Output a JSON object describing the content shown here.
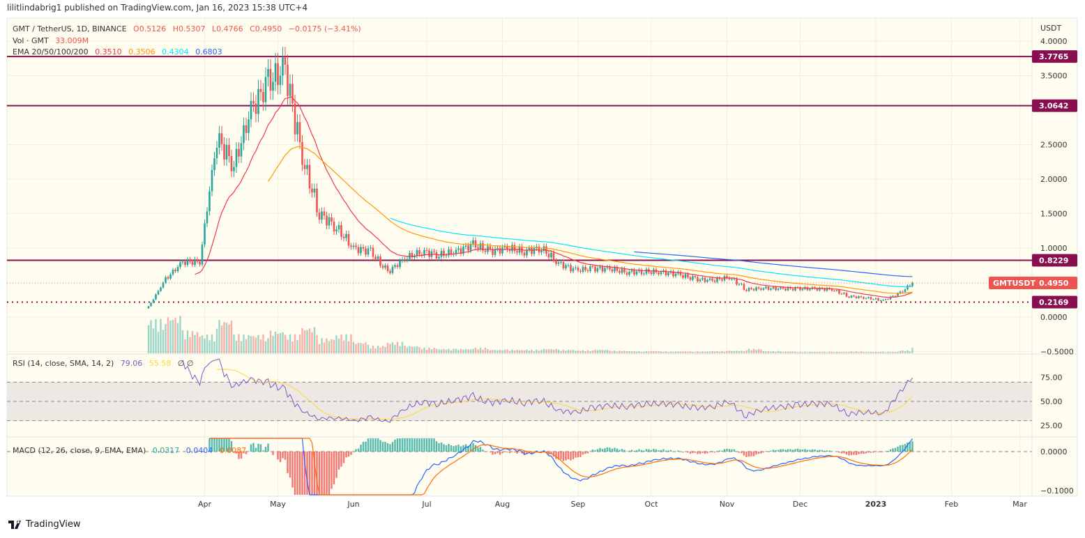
{
  "header": {
    "published": "lilitlindabrig1 published on TradingView.com, Jan 16, 2023 15:38 UTC+4"
  },
  "legend": {
    "symbol": "GMT / TetherUS, 1D, BINANCE",
    "open": "O0.5126",
    "high": "H0.5307",
    "low": "L0.4766",
    "close": "C0.4950",
    "change": "−0.0175 (−3.41%)",
    "vol_label": "Vol · GMT",
    "vol_value": "33.009M",
    "ema_label": "EMA 20/50/100/200",
    "ema_values": [
      "0.3510",
      "0.3506",
      "0.4304",
      "0.6803"
    ],
    "rsi_label": "RSI (14, close, SMA, 14, 2)",
    "rsi_value": "79.06",
    "rsi_sma": "55.58",
    "rsi_extra": "∅  ∅",
    "macd_label": "MACD (12, 26, close, 9, EMA, EMA)",
    "macd_hist": "0.0317",
    "macd_line": "0.0404",
    "macd_signal": "0.0087"
  },
  "colors": {
    "up": "#26a69a",
    "down": "#ef5350",
    "level": "#880e4f",
    "ema20": "#f23645",
    "ema50": "#ff9800",
    "ema100": "#00e5ff",
    "ema200": "#2962ff",
    "rsi": "#7e57c2",
    "rsi_sma": "#fdd835",
    "macd": "#2962ff",
    "signal": "#ff6d00",
    "background": "#fffdf0"
  },
  "footer": {
    "brand": "TradingView"
  },
  "chart_data": {
    "type": "candlestick",
    "currency": "USDT",
    "y_ticks": [
      "4.0000",
      "3.5000",
      "2.5000",
      "2.0000",
      "1.5000",
      "1.0000",
      "0.0000",
      "−0.5000"
    ],
    "ylim": [
      -0.5,
      4.2
    ],
    "levels": [
      {
        "value": 3.7765,
        "label": "3.7765",
        "style": "solid"
      },
      {
        "value": 3.0642,
        "label": "3.0642",
        "style": "solid"
      },
      {
        "value": 0.8229,
        "label": "0.8229",
        "style": "solid"
      },
      {
        "value": 0.2169,
        "label": "0.2169",
        "style": "dotted"
      }
    ],
    "last_price": {
      "value": 0.495,
      "symbol": "GMTUSDT",
      "label": "0.4950"
    },
    "x_ticks": [
      {
        "label": "Apr",
        "date": "2022-04-01"
      },
      {
        "label": "May",
        "date": "2022-05-01"
      },
      {
        "label": "Jun",
        "date": "2022-06-01"
      },
      {
        "label": "Jul",
        "date": "2022-07-01"
      },
      {
        "label": "Aug",
        "date": "2022-08-01"
      },
      {
        "label": "Sep",
        "date": "2022-09-01"
      },
      {
        "label": "Oct",
        "date": "2022-10-01"
      },
      {
        "label": "Nov",
        "date": "2022-11-01"
      },
      {
        "label": "Dec",
        "date": "2022-12-01"
      },
      {
        "label": "2023",
        "date": "2023-01-01"
      },
      {
        "label": "Feb",
        "date": "2023-02-01"
      },
      {
        "label": "Mar",
        "date": "2023-03-01"
      }
    ],
    "weekly_close": [
      {
        "date": "2022-03-09",
        "close": 0.15,
        "vol": 0.9
      },
      {
        "date": "2022-03-16",
        "close": 0.55,
        "vol": 1
      },
      {
        "date": "2022-03-23",
        "close": 0.8,
        "vol": 0.6
      },
      {
        "date": "2022-03-30",
        "close": 0.8,
        "vol": 0.5
      },
      {
        "date": "2022-04-06",
        "close": 2.6,
        "vol": 0.9
      },
      {
        "date": "2022-04-13",
        "close": 2.2,
        "vol": 0.5
      },
      {
        "date": "2022-04-20",
        "close": 3.0,
        "vol": 0.5
      },
      {
        "date": "2022-04-27",
        "close": 3.4,
        "vol": 0.6
      },
      {
        "date": "2022-05-04",
        "close": 3.6,
        "vol": 0.5
      },
      {
        "date": "2022-05-11",
        "close": 2.3,
        "vol": 0.7
      },
      {
        "date": "2022-05-18",
        "close": 1.5,
        "vol": 0.4
      },
      {
        "date": "2022-05-25",
        "close": 1.3,
        "vol": 0.5
      },
      {
        "date": "2022-06-01",
        "close": 1.0,
        "vol": 0.3
      },
      {
        "date": "2022-06-08",
        "close": 0.95,
        "vol": 0.2
      },
      {
        "date": "2022-06-15",
        "close": 0.65,
        "vol": 0.3
      },
      {
        "date": "2022-06-22",
        "close": 0.85,
        "vol": 0.2
      },
      {
        "date": "2022-06-29",
        "close": 0.95,
        "vol": 0.15
      },
      {
        "date": "2022-07-06",
        "close": 0.9,
        "vol": 0.12
      },
      {
        "date": "2022-07-13",
        "close": 0.95,
        "vol": 0.12
      },
      {
        "date": "2022-07-20",
        "close": 1.05,
        "vol": 0.15
      },
      {
        "date": "2022-07-27",
        "close": 0.95,
        "vol": 0.1
      },
      {
        "date": "2022-08-03",
        "close": 1.0,
        "vol": 0.1
      },
      {
        "date": "2022-08-10",
        "close": 0.95,
        "vol": 0.1
      },
      {
        "date": "2022-08-17",
        "close": 1.0,
        "vol": 0.12
      },
      {
        "date": "2022-08-24",
        "close": 0.78,
        "vol": 0.1
      },
      {
        "date": "2022-08-31",
        "close": 0.68,
        "vol": 0.08
      },
      {
        "date": "2022-09-07",
        "close": 0.7,
        "vol": 0.1
      },
      {
        "date": "2022-09-14",
        "close": 0.7,
        "vol": 0.07
      },
      {
        "date": "2022-09-21",
        "close": 0.65,
        "vol": 0.06
      },
      {
        "date": "2022-09-28",
        "close": 0.66,
        "vol": 0.06
      },
      {
        "date": "2022-10-05",
        "close": 0.65,
        "vol": 0.05
      },
      {
        "date": "2022-10-12",
        "close": 0.62,
        "vol": 0.05
      },
      {
        "date": "2022-10-19",
        "close": 0.55,
        "vol": 0.05
      },
      {
        "date": "2022-10-26",
        "close": 0.53,
        "vol": 0.06
      },
      {
        "date": "2022-11-02",
        "close": 0.58,
        "vol": 0.07
      },
      {
        "date": "2022-11-09",
        "close": 0.4,
        "vol": 0.12
      },
      {
        "date": "2022-11-16",
        "close": 0.42,
        "vol": 0.06
      },
      {
        "date": "2022-11-23",
        "close": 0.41,
        "vol": 0.05
      },
      {
        "date": "2022-11-30",
        "close": 0.41,
        "vol": 0.04
      },
      {
        "date": "2022-12-07",
        "close": 0.41,
        "vol": 0.04
      },
      {
        "date": "2022-12-14",
        "close": 0.4,
        "vol": 0.04
      },
      {
        "date": "2022-12-21",
        "close": 0.3,
        "vol": 0.05
      },
      {
        "date": "2022-12-28",
        "close": 0.28,
        "vol": 0.04
      },
      {
        "date": "2023-01-04",
        "close": 0.24,
        "vol": 0.04
      },
      {
        "date": "2023-01-11",
        "close": 0.35,
        "vol": 0.08
      },
      {
        "date": "2023-01-16",
        "close": 0.495,
        "vol": 0.15
      }
    ],
    "rsi_ticks": [
      "75.00",
      "50.00",
      "25.00"
    ],
    "macd_ticks": [
      "0.0000",
      "−0.1000"
    ]
  }
}
